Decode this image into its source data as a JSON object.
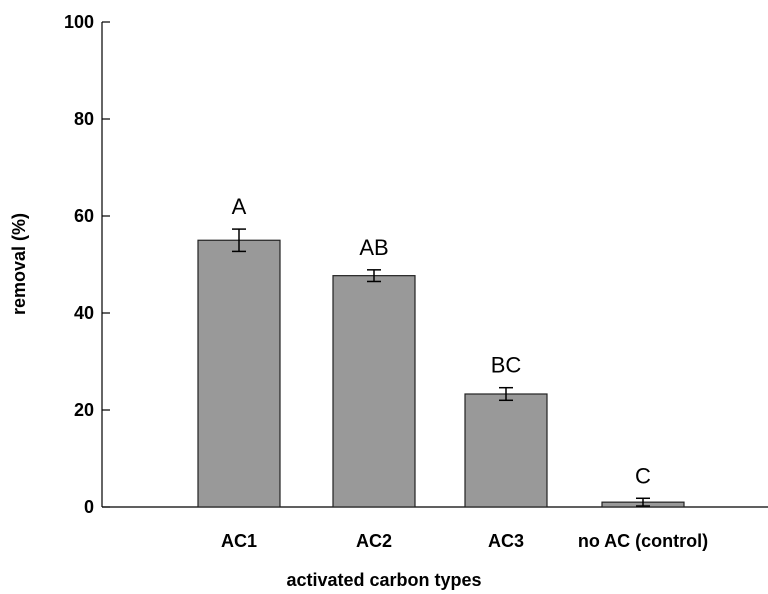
{
  "chart_data": {
    "type": "bar",
    "title": "",
    "xlabel": "activated carbon types",
    "ylabel": "removal (%)",
    "categories": [
      "AC1",
      "AC2",
      "AC3",
      "no AC (control)"
    ],
    "values": [
      55,
      47.7,
      23.3,
      1.0
    ],
    "errors": [
      2.3,
      1.2,
      1.3,
      0.8
    ],
    "group_labels": [
      "A",
      "AB",
      "BC",
      "C"
    ],
    "ylim": [
      0,
      100
    ],
    "yticks": [
      0,
      20,
      40,
      60,
      80,
      100
    ],
    "ytick_labels": [
      "0",
      "20",
      "40",
      "60",
      "80",
      "100"
    ],
    "grid": false,
    "bar_color": "#999999"
  }
}
